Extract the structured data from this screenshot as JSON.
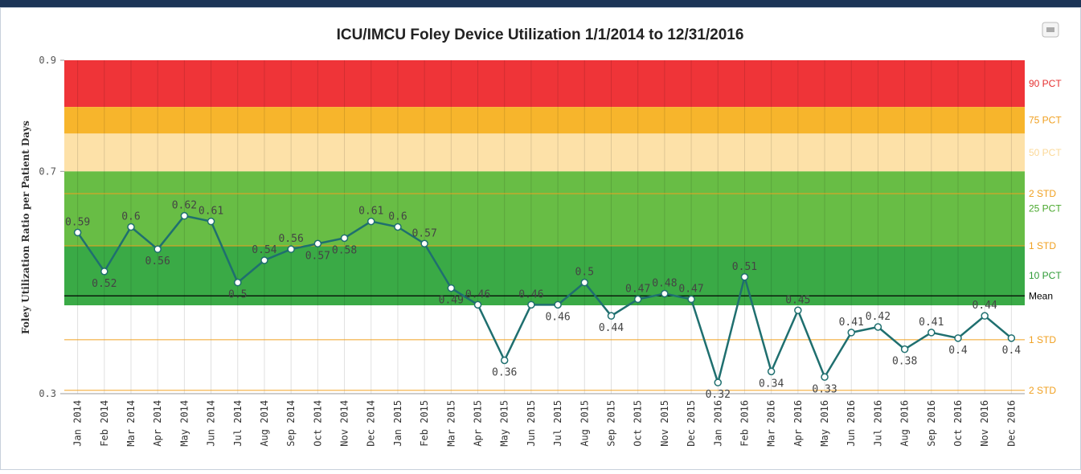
{
  "chart_data": {
    "type": "line",
    "title": "ICU/IMCU Foley Device Utilization 1/1/2014 to 12/31/2016",
    "y_label": "Foley Utilization Ratio per Patient Days",
    "categories": [
      "Jan 2014",
      "Feb 2014",
      "Mar 2014",
      "Apr 2014",
      "May 2014",
      "Jun 2014",
      "Jul 2014",
      "Aug 2014",
      "Sep 2014",
      "Oct 2014",
      "Nov 2014",
      "Dec 2014",
      "Jan 2015",
      "Feb 2015",
      "Mar 2015",
      "Apr 2015",
      "May 2015",
      "Jun 2015",
      "Jul 2015",
      "Aug 2015",
      "Sep 2015",
      "Oct 2015",
      "Nov 2015",
      "Dec 2015",
      "Jan 2016",
      "Feb 2016",
      "Mar 2016",
      "Apr 2016",
      "May 2016",
      "Jun 2016",
      "Jul 2016",
      "Aug 2016",
      "Sep 2016",
      "Oct 2016",
      "Nov 2016",
      "Dec 2016"
    ],
    "series": [
      {
        "color": "#1f6f6f",
        "values": [
          0.59,
          0.52,
          0.6,
          0.56,
          0.62,
          0.61,
          0.5,
          0.54,
          0.56,
          0.57,
          0.58,
          0.61,
          0.6,
          0.57,
          0.49,
          0.46,
          0.36,
          0.46,
          0.46,
          0.5,
          0.44,
          0.47,
          0.48,
          0.47,
          0.32,
          0.51,
          0.34,
          0.45,
          0.33,
          0.41,
          0.42,
          0.38,
          0.41,
          0.4,
          0.44,
          0.4
        ]
      }
    ],
    "ylim": [
      0.3,
      0.9
    ],
    "yticks": [
      0.3,
      0.7,
      0.9
    ],
    "grid": true,
    "bands": [
      {
        "name": "90 PCT",
        "from": 0.816,
        "to": 0.9,
        "color": "#ef3438",
        "label_color": "#e53030"
      },
      {
        "name": "75 PCT",
        "from": 0.768,
        "to": 0.816,
        "color": "#f7b52c",
        "label_color": "#f0a020"
      },
      {
        "name": "50 PCT",
        "from": 0.7,
        "to": 0.768,
        "color": "#fde1a8",
        "label_color": "#fbd898"
      },
      {
        "name": "25 PCT",
        "from": 0.566,
        "to": 0.7,
        "color": "#68bd45",
        "label_color": "#4aa82e"
      },
      {
        "name": "10 PCT",
        "from": 0.459,
        "to": 0.566,
        "color": "#3aaa46",
        "label_color": "#2e9a36"
      }
    ],
    "reference_lines": [
      {
        "name": "2 STD",
        "value": 0.66,
        "color": "#f0a020"
      },
      {
        "name": "1 STD",
        "value": 0.566,
        "color": "#f0a020"
      },
      {
        "name": "Mean",
        "value": 0.476,
        "color": "#000000"
      },
      {
        "name": "1 STD",
        "value": 0.397,
        "color": "#f0a020"
      },
      {
        "name": "2 STD",
        "value": 0.306,
        "color": "#f0a020"
      }
    ]
  }
}
